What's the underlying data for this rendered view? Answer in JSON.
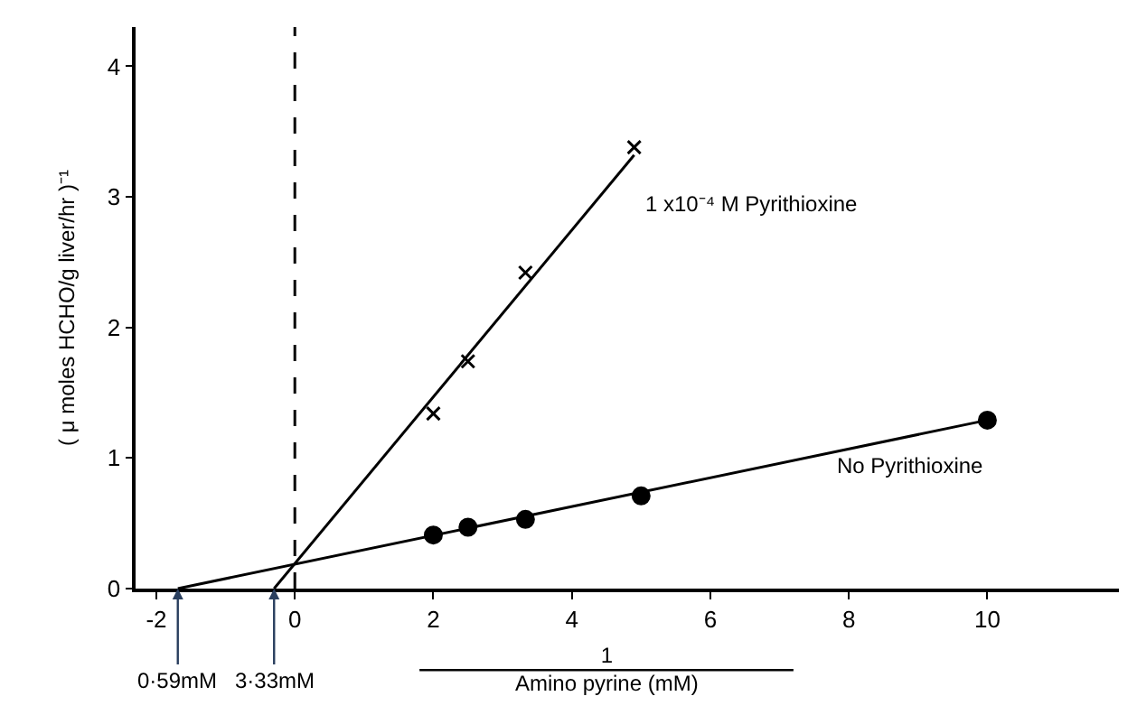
{
  "chart_data": {
    "type": "scatter",
    "xlabel": "1\nAmino pyrine (mM)",
    "ylabel": "( μ moles HCHO/g liver/hr )⁻¹",
    "xlim": [
      -2.3,
      11.9
    ],
    "ylim": [
      0,
      4.3
    ],
    "xticks": [
      -2,
      0,
      2,
      4,
      6,
      8,
      10
    ],
    "yticks": [
      0,
      1,
      2,
      3,
      4
    ],
    "series": [
      {
        "name": "1 x10⁻⁴ M Pyrithioxine",
        "marker": "cross",
        "color": "#000000",
        "x": [
          2,
          2.5,
          3.33,
          4.9
        ],
        "values": [
          1.34,
          1.74,
          2.42,
          3.38
        ]
      },
      {
        "name": "No Pyrithioxine",
        "marker": "circle",
        "color": "#000000",
        "x": [
          2,
          2.5,
          3.33,
          5,
          10
        ],
        "values": [
          0.41,
          0.47,
          0.53,
          0.71,
          1.29
        ]
      },
      {
        "type": "line",
        "color": "#000000",
        "line_style": "solid",
        "x": [
          -0.3,
          4.9
        ],
        "values": [
          0,
          3.32
        ]
      },
      {
        "type": "line",
        "color": "#000000",
        "line_style": "solid",
        "x": [
          -1.69,
          10
        ],
        "values": [
          0,
          1.29
        ]
      }
    ],
    "ref_lines": [
      {
        "axis": "x",
        "value": 0,
        "color": "#000000",
        "line_style": "dashed"
      }
    ],
    "annotations": [
      {
        "text": "0·59mM",
        "x": -1.69,
        "y": 0
      },
      {
        "text": "3·33mM",
        "x": -0.3,
        "y": 0
      }
    ]
  }
}
